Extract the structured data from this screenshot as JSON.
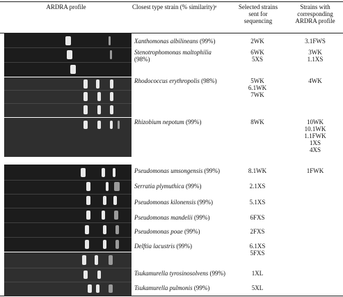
{
  "headers": {
    "ardra": "ARDRA profile",
    "closest": "Closest type strain (% similarity)ᵃ",
    "selected": "Selected strains sent for sequencing",
    "corresponding": "Strains with corresponding ARDRA profile"
  },
  "rows": [
    {
      "species": "Xanthomonas albilineans",
      "sim": "(99%)",
      "selected": [
        "2WK"
      ],
      "corr": [
        "3.1FWS"
      ]
    },
    {
      "species": "Stenotrophomonas maltophilia",
      "sim": "(98%)",
      "selected": [
        "6WK",
        "5XS"
      ],
      "corr": [
        "3WK",
        "1.1XS"
      ]
    },
    {
      "species": "Rhodococcus erythropolis",
      "sim": "(98%)",
      "selected": [
        "5WK",
        "6.1WK",
        "7WK"
      ],
      "corr": [
        "4WK"
      ]
    },
    {
      "species": "Rhizobium nepotum",
      "sim": "(99%)",
      "selected": [
        "8WK"
      ],
      "corr": [
        "10WK",
        "10.1WK",
        "1.1FWK",
        "1XS",
        "4XS"
      ]
    },
    {
      "species": "Pseudomonas umsongensis",
      "sim": "(99%)",
      "selected": [
        "8.1WK"
      ],
      "corr": [
        "1FWK"
      ]
    },
    {
      "species": "Serratia plymuthica",
      "sim": "(99%)",
      "selected": [
        "2.1XS"
      ],
      "corr": []
    },
    {
      "species": "Pseudomonas kilonensis",
      "sim": "(99%)",
      "selected": [
        "5.1XS"
      ],
      "corr": []
    },
    {
      "species": "Pseudomonas mandelii",
      "sim": "(99%)",
      "selected": [
        "6FXS"
      ],
      "corr": []
    },
    {
      "species": "Pseudomonas poae",
      "sim": "(99%)",
      "selected": [
        "2FXS"
      ],
      "corr": []
    },
    {
      "species": "Delftia lacustris",
      "sim": "(99%)",
      "selected": [
        "6.1XS",
        "5FXS"
      ],
      "corr": []
    },
    {
      "species": "Tsukamurella tyrosinosolvens",
      "sim": "(99%)",
      "selected": [
        "1XL"
      ],
      "corr": []
    },
    {
      "species": "Tsukamurella pulmonis",
      "sim": "(99%)",
      "selected": [
        "5XL"
      ],
      "corr": []
    }
  ]
}
